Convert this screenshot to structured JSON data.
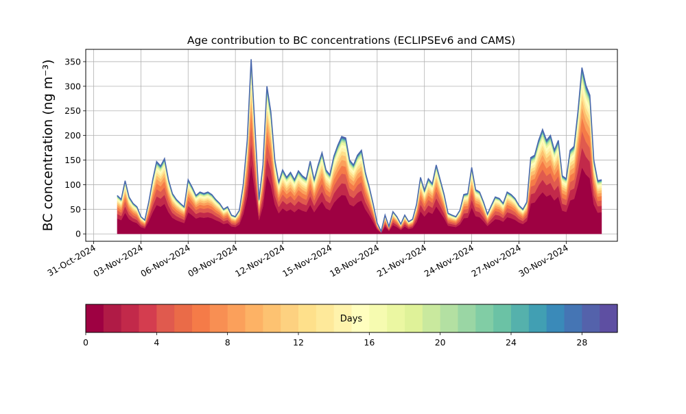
{
  "chart_data": {
    "type": "area",
    "title": "Age contribution to BC concentrations (ECLIPSEv6 and CAMS)",
    "xlabel": "",
    "ylabel": "BC concentration (ng m⁻³)",
    "xlim": [
      "2024-10-30T12:00",
      "2024-12-03T06:00"
    ],
    "ylim": [
      -15,
      375
    ],
    "grid": true,
    "xticks": [
      "31-Oct-2024",
      "03-Nov-2024",
      "06-Nov-2024",
      "09-Nov-2024",
      "12-Nov-2024",
      "15-Nov-2024",
      "18-Nov-2024",
      "21-Nov-2024",
      "24-Nov-2024",
      "27-Nov-2024",
      "30-Nov-2024"
    ],
    "yticks": [
      0,
      50,
      100,
      150,
      200,
      250,
      300,
      350
    ],
    "series_note": "stacked by age class (days); bottom = youngest",
    "x": [
      "2024-11-01T12:00",
      "2024-11-01T18:00",
      "2024-11-02T00:00",
      "2024-11-02T06:00",
      "2024-11-02T12:00",
      "2024-11-02T18:00",
      "2024-11-03T00:00",
      "2024-11-03T06:00",
      "2024-11-03T12:00",
      "2024-11-03T18:00",
      "2024-11-04T00:00",
      "2024-11-04T06:00",
      "2024-11-04T12:00",
      "2024-11-04T18:00",
      "2024-11-05T00:00",
      "2024-11-05T06:00",
      "2024-11-05T12:00",
      "2024-11-05T18:00",
      "2024-11-06T00:00",
      "2024-11-06T06:00",
      "2024-11-06T12:00",
      "2024-11-06T18:00",
      "2024-11-07T00:00",
      "2024-11-07T06:00",
      "2024-11-07T12:00",
      "2024-11-07T18:00",
      "2024-11-08T00:00",
      "2024-11-08T06:00",
      "2024-11-08T12:00",
      "2024-11-08T18:00",
      "2024-11-09T00:00",
      "2024-11-09T06:00",
      "2024-11-09T12:00",
      "2024-11-09T18:00",
      "2024-11-10T00:00",
      "2024-11-10T06:00",
      "2024-11-10T12:00",
      "2024-11-10T18:00",
      "2024-11-11T00:00",
      "2024-11-11T06:00",
      "2024-11-11T12:00",
      "2024-11-11T18:00",
      "2024-11-12T00:00",
      "2024-11-12T06:00",
      "2024-11-12T12:00",
      "2024-11-12T18:00",
      "2024-11-13T00:00",
      "2024-11-13T06:00",
      "2024-11-13T12:00",
      "2024-11-13T18:00",
      "2024-11-14T00:00",
      "2024-11-14T06:00",
      "2024-11-14T12:00",
      "2024-11-14T18:00",
      "2024-11-15T00:00",
      "2024-11-15T06:00",
      "2024-11-15T12:00",
      "2024-11-15T18:00",
      "2024-11-16T00:00",
      "2024-11-16T06:00",
      "2024-11-16T12:00",
      "2024-11-16T18:00",
      "2024-11-17T00:00",
      "2024-11-17T06:00",
      "2024-11-17T12:00",
      "2024-11-17T18:00",
      "2024-11-18T00:00",
      "2024-11-18T06:00",
      "2024-11-18T12:00",
      "2024-11-18T18:00",
      "2024-11-19T00:00",
      "2024-11-19T06:00",
      "2024-11-19T12:00",
      "2024-11-19T18:00",
      "2024-11-20T00:00",
      "2024-11-20T06:00",
      "2024-11-20T12:00",
      "2024-11-20T18:00",
      "2024-11-21T00:00",
      "2024-11-21T06:00",
      "2024-11-21T12:00",
      "2024-11-21T18:00",
      "2024-11-22T00:00",
      "2024-11-22T06:00",
      "2024-11-22T12:00",
      "2024-11-22T18:00",
      "2024-11-23T00:00",
      "2024-11-23T06:00",
      "2024-11-23T12:00",
      "2024-11-23T18:00",
      "2024-11-24T00:00",
      "2024-11-24T06:00",
      "2024-11-24T12:00",
      "2024-11-24T18:00",
      "2024-11-25T00:00",
      "2024-11-25T06:00",
      "2024-11-25T12:00",
      "2024-11-25T18:00",
      "2024-11-26T00:00",
      "2024-11-26T06:00",
      "2024-11-26T12:00",
      "2024-11-26T18:00",
      "2024-11-27T00:00",
      "2024-11-27T06:00",
      "2024-11-27T12:00",
      "2024-11-27T18:00",
      "2024-11-28T00:00",
      "2024-11-28T06:00",
      "2024-11-28T12:00",
      "2024-11-28T18:00",
      "2024-11-29T00:00",
      "2024-11-29T06:00",
      "2024-11-29T12:00",
      "2024-11-29T18:00",
      "2024-11-30T00:00",
      "2024-11-30T06:00",
      "2024-11-30T12:00",
      "2024-11-30T18:00",
      "2024-12-01T00:00",
      "2024-12-01T06:00",
      "2024-12-01T12:00",
      "2024-12-01T18:00",
      "2024-12-02T00:00",
      "2024-12-02T06:00"
    ],
    "total": [
      78,
      70,
      108,
      75,
      62,
      55,
      35,
      28,
      65,
      110,
      147,
      138,
      153,
      110,
      82,
      70,
      62,
      55,
      110,
      95,
      78,
      85,
      82,
      85,
      80,
      70,
      62,
      50,
      55,
      38,
      35,
      48,
      100,
      190,
      355,
      210,
      70,
      140,
      300,
      248,
      150,
      105,
      130,
      115,
      125,
      110,
      128,
      118,
      112,
      148,
      110,
      140,
      165,
      130,
      120,
      158,
      180,
      198,
      195,
      150,
      140,
      160,
      170,
      125,
      95,
      60,
      22,
      5,
      38,
      15,
      45,
      35,
      20,
      38,
      25,
      30,
      60,
      115,
      88,
      112,
      102,
      140,
      110,
      80,
      42,
      38,
      35,
      48,
      80,
      82,
      135,
      90,
      85,
      65,
      40,
      58,
      75,
      72,
      62,
      85,
      80,
      72,
      58,
      50,
      65,
      155,
      160,
      190,
      212,
      190,
      200,
      170,
      190,
      118,
      112,
      170,
      178,
      250,
      338,
      302,
      282,
      150,
      108,
      110
    ],
    "age_fractions": [
      0.0,
      0.4,
      0.52,
      0.62,
      0.7,
      0.76,
      0.81,
      0.85,
      0.885,
      0.915,
      0.94,
      0.955,
      0.967,
      0.976,
      0.984,
      0.99,
      1.0
    ],
    "colorbar": {
      "label": "Days",
      "range": [
        0,
        30
      ],
      "ticks": [
        0,
        4,
        8,
        12,
        16,
        20,
        24,
        28
      ],
      "colors": [
        "#9e0142",
        "#b01b46",
        "#c2294a",
        "#d43d4f",
        "#e05a4e",
        "#ea6b48",
        "#f57b48",
        "#f88f53",
        "#fba05b",
        "#fdb265",
        "#fdc271",
        "#fdd180",
        "#fee08b",
        "#fee99a",
        "#fff3ac",
        "#fffebf",
        "#f6fbb0",
        "#ebf7a2",
        "#dff299",
        "#c9e99e",
        "#b3e0a2",
        "#9ad6a4",
        "#81cda5",
        "#6bc2a5",
        "#55b1ac",
        "#419fb3",
        "#3a8ab9",
        "#4575b4",
        "#5462ab",
        "#5e4fa2"
      ]
    }
  }
}
